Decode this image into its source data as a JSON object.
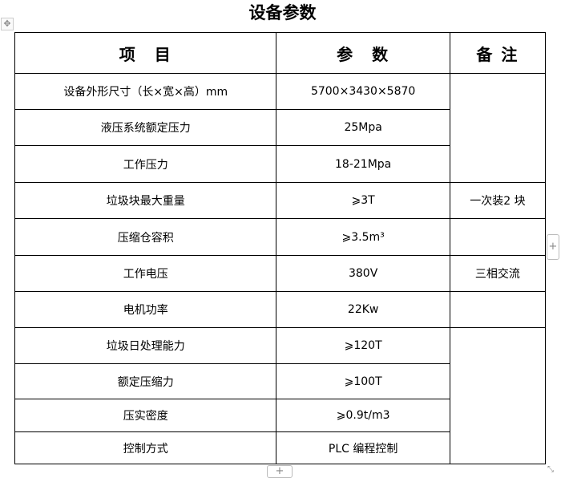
{
  "title": "设备参数",
  "headers": [
    "项　目",
    "参　数",
    "备 注"
  ],
  "rows": [
    {
      "item": "设备外形尺寸（长×宽×高）mm",
      "value": "5700×3430×5870"
    },
    {
      "item": "液压系统额定压力",
      "value": "25Mpa"
    },
    {
      "item": "工作压力",
      "value": "18-21Mpa"
    },
    {
      "item": "垃圾块最大重量",
      "value": "⩾3T",
      "note": "一次装2 块"
    },
    {
      "item": "压缩仓容积",
      "value": "⩾3.5m³"
    },
    {
      "item": "工作电压",
      "value": "380V",
      "note": "三相交流"
    },
    {
      "item": "电机功率",
      "value": "22Kw"
    },
    {
      "item": "垃圾日处理能力",
      "value": "⩾120T"
    },
    {
      "item": "额定压缩力",
      "value": "⩾100T"
    },
    {
      "item": "压实密度",
      "value": "⩾0.9t/m3"
    },
    {
      "item": "控制方式",
      "value": "PLC 编程控制"
    }
  ],
  "controls": {
    "move_icon": "move-icon",
    "add_column": "+",
    "add_row": "+",
    "resize_icon": "resize-icon"
  }
}
